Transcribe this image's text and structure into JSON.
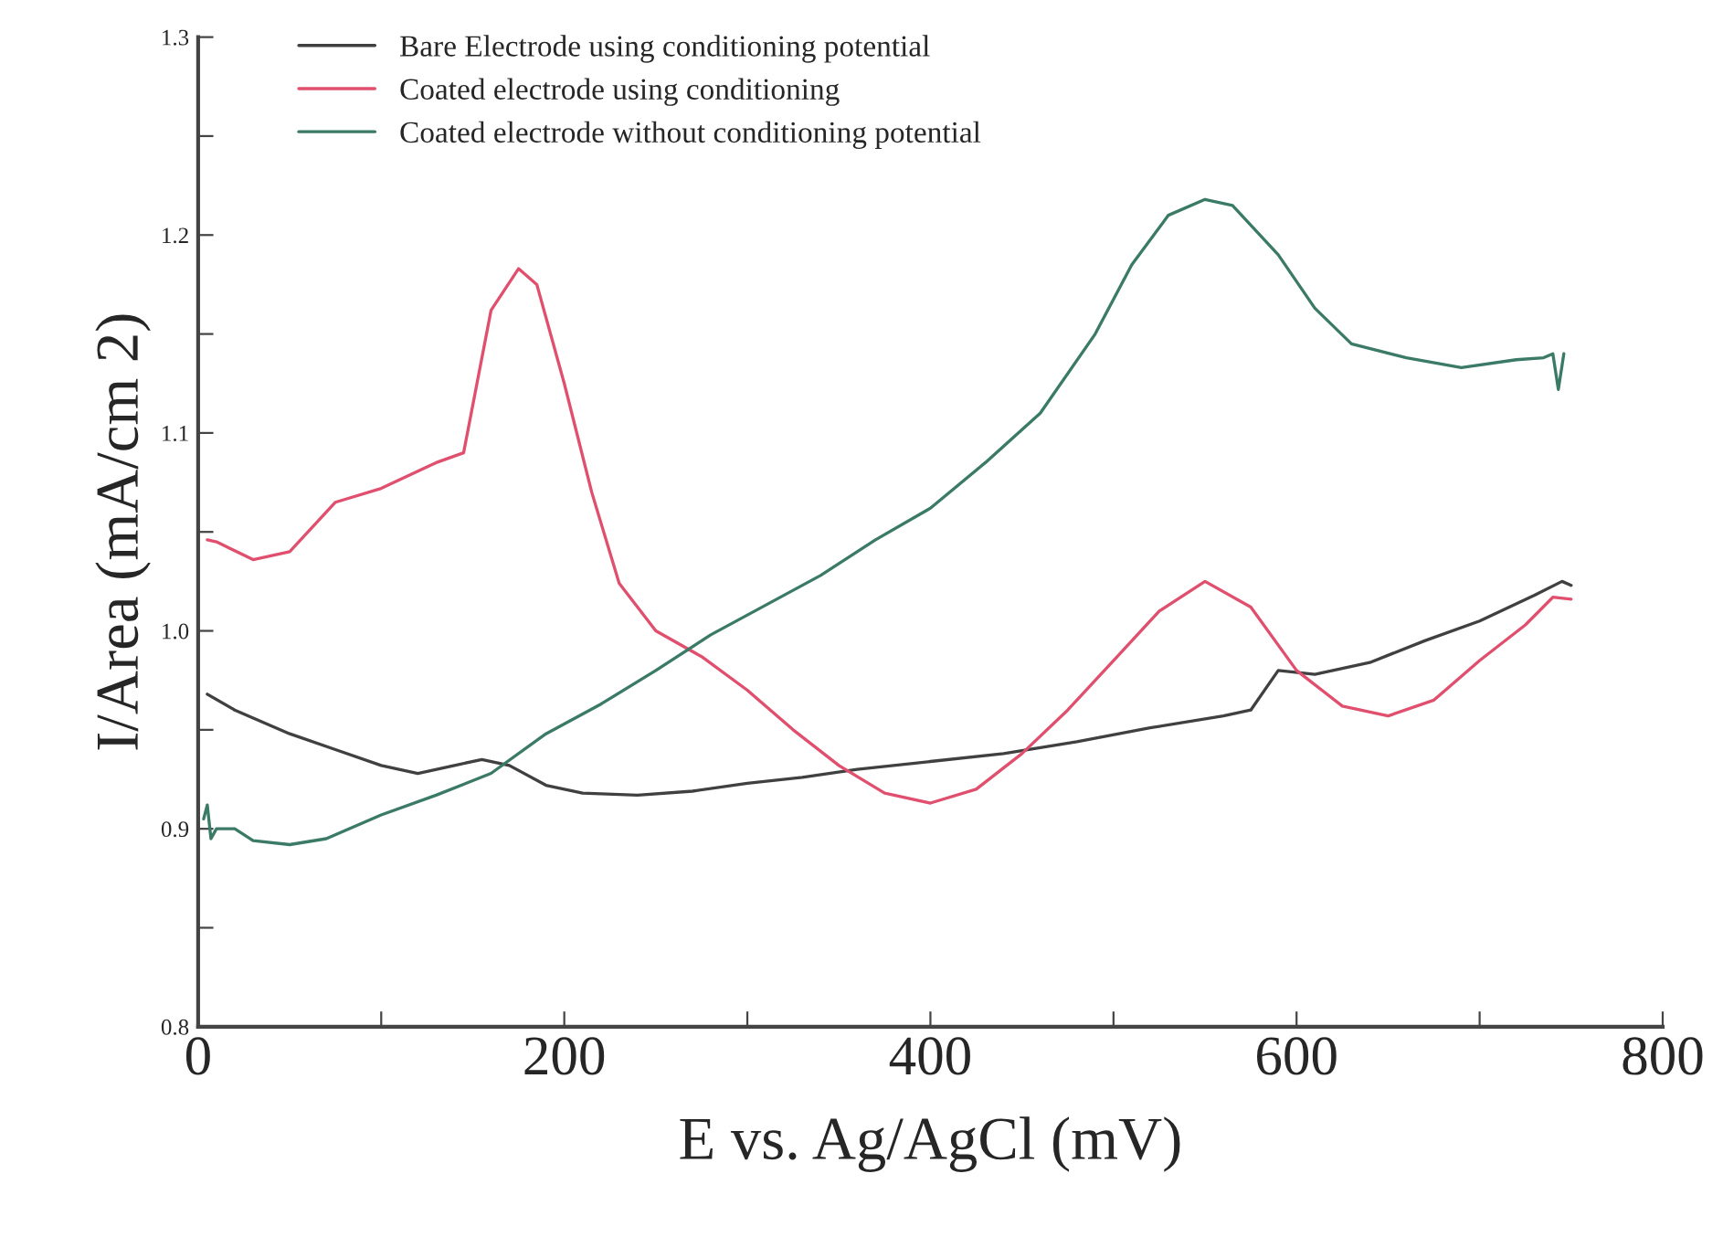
{
  "chart_data": {
    "type": "line",
    "xlabel": "E vs. Ag/AgCl (mV)",
    "ylabel": "I/Area (mA/cm 2)",
    "xlim": [
      0,
      800
    ],
    "ylim": [
      0.8,
      1.3
    ],
    "xticks": [
      0,
      {
        "value": 100,
        "label": null
      },
      200,
      {
        "value": 300,
        "label": null
      },
      400,
      {
        "value": 500,
        "label": null
      },
      600,
      {
        "value": 700,
        "label": null
      },
      800
    ],
    "yticks": [
      0.8,
      {
        "value": 0.85,
        "label": null
      },
      0.9,
      {
        "value": 0.95,
        "label": null
      },
      {
        "value": 1.0,
        "label": "1.0"
      },
      {
        "value": 1.05,
        "label": null
      },
      1.1,
      {
        "value": 1.15,
        "label": null
      },
      1.2,
      {
        "value": 1.25,
        "label": null
      },
      1.3
    ],
    "legend": "top left",
    "grid": false,
    "marker": "none",
    "line_style": "solid",
    "series": [
      {
        "name": "Bare Electrode using conditioning potential",
        "color": "#404040",
        "x": [
          5,
          20,
          50,
          75,
          100,
          120,
          140,
          155,
          170,
          190,
          210,
          240,
          270,
          300,
          330,
          360,
          400,
          440,
          480,
          520,
          560,
          575,
          590,
          610,
          640,
          670,
          700,
          730,
          745,
          750
        ],
        "values": [
          0.968,
          0.96,
          0.948,
          0.94,
          0.932,
          0.928,
          0.932,
          0.935,
          0.932,
          0.922,
          0.918,
          0.917,
          0.919,
          0.923,
          0.926,
          0.93,
          0.934,
          0.938,
          0.944,
          0.951,
          0.957,
          0.96,
          0.98,
          0.978,
          0.984,
          0.995,
          1.005,
          1.018,
          1.025,
          1.023
        ]
      },
      {
        "name": "Coated electrode using conditioning",
        "color": "#e0506e",
        "x": [
          5,
          10,
          30,
          50,
          75,
          100,
          130,
          145,
          160,
          175,
          185,
          200,
          215,
          230,
          250,
          275,
          300,
          325,
          350,
          375,
          400,
          425,
          450,
          475,
          500,
          525,
          550,
          575,
          600,
          625,
          650,
          675,
          700,
          725,
          740,
          750
        ],
        "values": [
          1.046,
          1.045,
          1.036,
          1.04,
          1.065,
          1.072,
          1.085,
          1.09,
          1.162,
          1.183,
          1.175,
          1.125,
          1.07,
          1.024,
          1.0,
          0.987,
          0.97,
          0.95,
          0.932,
          0.918,
          0.913,
          0.92,
          0.938,
          0.96,
          0.985,
          1.01,
          1.025,
          1.012,
          0.98,
          0.962,
          0.957,
          0.965,
          0.985,
          1.003,
          1.017,
          1.016
        ]
      },
      {
        "name": "Coated electrode without conditioning potential",
        "color": "#3a7a66",
        "x": [
          3,
          5,
          7,
          10,
          20,
          30,
          50,
          70,
          100,
          130,
          160,
          190,
          220,
          250,
          280,
          310,
          340,
          370,
          400,
          430,
          460,
          490,
          510,
          530,
          550,
          565,
          590,
          610,
          630,
          660,
          690,
          720,
          735,
          740,
          743,
          746
        ],
        "values": [
          0.905,
          0.912,
          0.895,
          0.9,
          0.9,
          0.894,
          0.892,
          0.895,
          0.907,
          0.917,
          0.928,
          0.948,
          0.963,
          0.98,
          0.998,
          1.013,
          1.028,
          1.046,
          1.062,
          1.085,
          1.11,
          1.15,
          1.185,
          1.21,
          1.218,
          1.215,
          1.19,
          1.163,
          1.145,
          1.138,
          1.133,
          1.137,
          1.138,
          1.14,
          1.122,
          1.14
        ]
      }
    ]
  }
}
